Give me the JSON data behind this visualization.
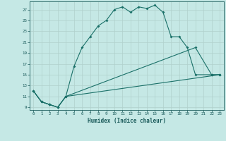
{
  "xlabel": "Humidex (Indice chaleur)",
  "bg_color": "#c5e8e5",
  "line_color": "#1a7068",
  "grid_color": "#b0d0cc",
  "xlim": [
    -0.5,
    23.5
  ],
  "ylim": [
    8.5,
    28.5
  ],
  "yticks": [
    9,
    11,
    13,
    15,
    17,
    19,
    21,
    23,
    25,
    27
  ],
  "xticks": [
    0,
    1,
    2,
    3,
    4,
    5,
    6,
    7,
    8,
    9,
    10,
    11,
    12,
    13,
    14,
    15,
    16,
    17,
    18,
    19,
    20,
    21,
    22,
    23
  ],
  "line1_x": [
    0,
    1,
    2,
    3,
    4,
    23
  ],
  "line1_y": [
    12,
    10,
    9.5,
    9,
    11,
    15
  ],
  "line2_x": [
    0,
    1,
    2,
    3,
    4,
    20,
    22,
    23
  ],
  "line2_y": [
    12,
    10,
    9.5,
    9,
    11,
    20,
    15,
    15
  ],
  "line3_x": [
    0,
    1,
    2,
    3,
    4,
    5,
    6,
    7,
    8,
    9,
    10,
    11,
    12,
    13,
    14,
    15,
    16,
    17,
    18,
    19,
    20,
    22,
    23
  ],
  "line3_y": [
    12,
    10,
    9.5,
    9,
    11,
    16.5,
    20,
    22,
    24,
    25,
    27,
    27.5,
    26.5,
    27.5,
    27.2,
    27.8,
    26.5,
    22,
    22,
    20,
    15,
    15,
    15
  ]
}
